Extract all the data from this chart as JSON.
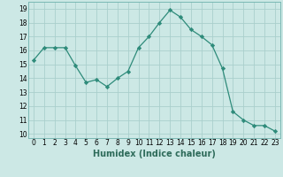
{
  "x": [
    0,
    1,
    2,
    3,
    4,
    5,
    6,
    7,
    8,
    9,
    10,
    11,
    12,
    13,
    14,
    15,
    16,
    17,
    18,
    19,
    20,
    21,
    22,
    23
  ],
  "y": [
    15.3,
    16.2,
    16.2,
    16.2,
    14.9,
    13.7,
    13.9,
    13.4,
    14.0,
    14.5,
    16.2,
    17.0,
    18.0,
    18.9,
    18.4,
    17.5,
    17.0,
    16.4,
    14.7,
    11.6,
    11.0,
    10.6,
    10.6,
    10.2
  ],
  "line_color": "#2e8b7a",
  "marker": "D",
  "marker_size": 2.2,
  "bg_color": "#cce8e5",
  "grid_color": "#aacfcc",
  "xlabel": "Humidex (Indice chaleur)",
  "xlim": [
    -0.5,
    23.5
  ],
  "ylim": [
    9.7,
    19.5
  ],
  "yticks": [
    10,
    11,
    12,
    13,
    14,
    15,
    16,
    17,
    18,
    19
  ],
  "xticks": [
    0,
    1,
    2,
    3,
    4,
    5,
    6,
    7,
    8,
    9,
    10,
    11,
    12,
    13,
    14,
    15,
    16,
    17,
    18,
    19,
    20,
    21,
    22,
    23
  ],
  "tick_fontsize": 5.5,
  "xlabel_fontsize": 7,
  "xlabel_color": "#2e6b5a"
}
